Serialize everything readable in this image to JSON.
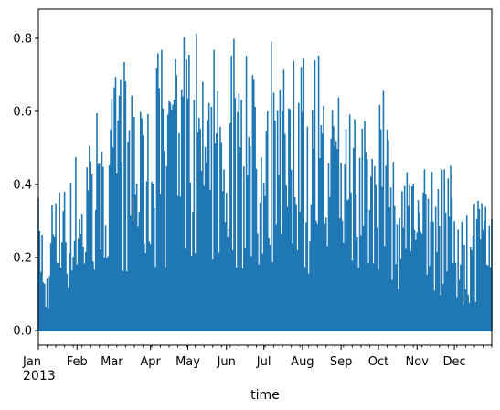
{
  "chart_data": {
    "type": "area",
    "title": "",
    "xlabel": "time",
    "ylabel": "",
    "year_label": "2013",
    "xlim": [
      "2013-01-01",
      "2013-12-31"
    ],
    "ylim": [
      -0.04,
      0.88
    ],
    "grid": false,
    "legend": "none",
    "color": "#1f77b4",
    "x_ticks": [
      {
        "label": "Jan",
        "date": "2013-01-01"
      },
      {
        "label": "Feb",
        "date": "2013-02-01"
      },
      {
        "label": "Mar",
        "date": "2013-03-01"
      },
      {
        "label": "Apr",
        "date": "2013-04-01"
      },
      {
        "label": "May",
        "date": "2013-05-01"
      },
      {
        "label": "Jun",
        "date": "2013-06-01"
      },
      {
        "label": "Jul",
        "date": "2013-07-01"
      },
      {
        "label": "Aug",
        "date": "2013-08-01"
      },
      {
        "label": "Sep",
        "date": "2013-09-01"
      },
      {
        "label": "Oct",
        "date": "2013-10-01"
      },
      {
        "label": "Nov",
        "date": "2013-11-01"
      },
      {
        "label": "Dec",
        "date": "2013-12-01"
      }
    ],
    "y_ticks": [
      {
        "label": "0.0",
        "value": 0.0
      },
      {
        "label": "0.2",
        "value": 0.2
      },
      {
        "label": "0.4",
        "value": 0.4
      },
      {
        "label": "0.6",
        "value": 0.6
      },
      {
        "label": "0.8",
        "value": 0.8
      }
    ],
    "series": [
      {
        "x": [
          "2013-01-01",
          "2013-01-07",
          "2013-01-14",
          "2013-01-21",
          "2013-01-28",
          "2013-02-04",
          "2013-02-11",
          "2013-02-18",
          "2013-02-25",
          "2013-03-04",
          "2013-03-11",
          "2013-03-18",
          "2013-03-25",
          "2013-04-01",
          "2013-04-08",
          "2013-04-15",
          "2013-04-22",
          "2013-04-29",
          "2013-05-06",
          "2013-05-13",
          "2013-05-20",
          "2013-05-27",
          "2013-06-03",
          "2013-06-10",
          "2013-06-17",
          "2013-06-24",
          "2013-07-01",
          "2013-07-08",
          "2013-07-15",
          "2013-07-22",
          "2013-07-29",
          "2013-08-05",
          "2013-08-12",
          "2013-08-19",
          "2013-08-26",
          "2013-09-02",
          "2013-09-09",
          "2013-09-16",
          "2013-09-23",
          "2013-09-30",
          "2013-10-07",
          "2013-10-14",
          "2013-10-21",
          "2013-10-28",
          "2013-11-04",
          "2013-11-11",
          "2013-11-18",
          "2013-11-25",
          "2013-12-02",
          "2013-12-09",
          "2013-12-16",
          "2013-12-23",
          "2013-12-30"
        ],
        "values": [
          0.37,
          0.19,
          0.47,
          0.45,
          0.55,
          0.52,
          0.53,
          0.62,
          0.58,
          0.7,
          0.75,
          0.68,
          0.73,
          0.79,
          0.82,
          0.8,
          0.81,
          0.82,
          0.84,
          0.8,
          0.78,
          0.82,
          0.82,
          0.81,
          0.81,
          0.76,
          0.81,
          0.8,
          0.79,
          0.78,
          0.81,
          0.75,
          0.77,
          0.79,
          0.74,
          0.7,
          0.65,
          0.62,
          0.58,
          0.75,
          0.74,
          0.56,
          0.49,
          0.48,
          0.46,
          0.46,
          0.44,
          0.55,
          0.35,
          0.34,
          0.37,
          0.43,
          0.39
        ],
        "daily_min": [
          0.0
        ]
      }
    ]
  }
}
